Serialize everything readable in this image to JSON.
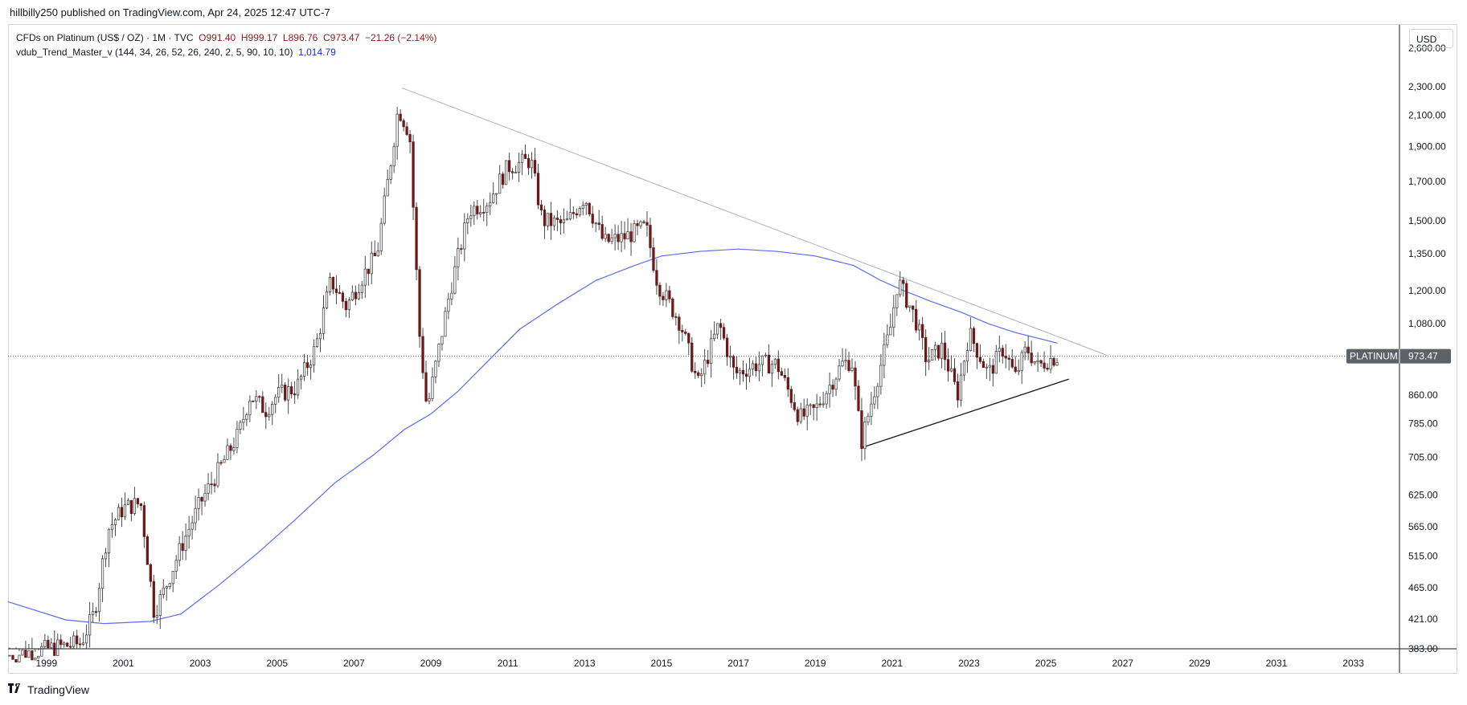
{
  "publisher_line": "hillbilly250 published on TradingView.com, Apr 24, 2025 12:47 UTC-7",
  "legend": {
    "symbol": "CFDs on Platinum (US$ / OZ) · 1M · TVC",
    "open": "O991.40",
    "high": "H999.17",
    "low": "L896.76",
    "close": "C973.47",
    "change": "−21.26 (−2.14%)",
    "indicator": "vdub_Trend_Master_v (144, 34, 26, 52, 26, 240, 2, 5, 90, 10, 10)",
    "indicator_value": "1,014.79"
  },
  "currency_button": "USD",
  "price_tag": {
    "label": "PLATINUM",
    "value": "973.47"
  },
  "footer_logo": "TradingView",
  "colors": {
    "up": "#ffffff",
    "down": "#6b1a1a",
    "wick": "#4a4a4a",
    "ma": "#5b6cf0",
    "trend": "#b3b3b3"
  },
  "chart_data": {
    "type": "candlestick",
    "title": "CFDs on Platinum (US$ / OZ)",
    "interval": "1M",
    "yscale": "log",
    "ylim": [
      383,
      2800
    ],
    "xlim": [
      1998.0,
      2034.2
    ],
    "y_ticks": [
      "2,600.00",
      "2,300.00",
      "2,100.00",
      "1,900.00",
      "1,700.00",
      "1,500.00",
      "1,350.00",
      "1,200.00",
      "1,080.00",
      "973.47",
      "860.00",
      "785.00",
      "705.00",
      "625.00",
      "565.00",
      "515.00",
      "465.00",
      "421.00",
      "383.00"
    ],
    "y_tick_values": [
      2600,
      2300,
      2100,
      1900,
      1700,
      1500,
      1350,
      1200,
      1080,
      973.47,
      860,
      785,
      705,
      625,
      565,
      515,
      465,
      421,
      383
    ],
    "x_ticks": [
      "1999",
      "2001",
      "2003",
      "2005",
      "2007",
      "2009",
      "2011",
      "2013",
      "2015",
      "2017",
      "2019",
      "2021",
      "2023",
      "2025",
      "2027",
      "2029",
      "2031",
      "2033"
    ],
    "x_tick_values": [
      1999,
      2001,
      2003,
      2005,
      2007,
      2009,
      2011,
      2013,
      2015,
      2017,
      2019,
      2021,
      2023,
      2025,
      2027,
      2029,
      2031,
      2033
    ],
    "last_price": 973.47,
    "price_anchors": [
      [
        1998.0,
        375
      ],
      [
        1999.9,
        390
      ],
      [
        2000.25,
        430
      ],
      [
        2000.6,
        560
      ],
      [
        2001.0,
        600
      ],
      [
        2001.45,
        610
      ],
      [
        2001.8,
        430
      ],
      [
        2002.05,
        460
      ],
      [
        2002.5,
        530
      ],
      [
        2003.0,
        610
      ],
      [
        2003.5,
        680
      ],
      [
        2004.0,
        760
      ],
      [
        2004.3,
        860
      ],
      [
        2004.7,
        820
      ],
      [
        2005.0,
        860
      ],
      [
        2005.5,
        880
      ],
      [
        2006.0,
        1000
      ],
      [
        2006.4,
        1240
      ],
      [
        2006.8,
        1140
      ],
      [
        2007.2,
        1250
      ],
      [
        2007.6,
        1350
      ],
      [
        2007.95,
        1800
      ],
      [
        2008.15,
        2150
      ],
      [
        2008.45,
        1980
      ],
      [
        2008.7,
        1050
      ],
      [
        2008.9,
        820
      ],
      [
        2009.1,
        930
      ],
      [
        2009.5,
        1200
      ],
      [
        2010.0,
        1550
      ],
      [
        2010.5,
        1600
      ],
      [
        2011.0,
        1780
      ],
      [
        2011.6,
        1820
      ],
      [
        2011.9,
        1500
      ],
      [
        2012.5,
        1480
      ],
      [
        2013.0,
        1620
      ],
      [
        2013.5,
        1400
      ],
      [
        2014.0,
        1420
      ],
      [
        2014.6,
        1470
      ],
      [
        2014.9,
        1230
      ],
      [
        2015.5,
        1080
      ],
      [
        2015.95,
        890
      ],
      [
        2016.5,
        1080
      ],
      [
        2016.9,
        920
      ],
      [
        2017.5,
        950
      ],
      [
        2018.0,
        950
      ],
      [
        2018.6,
        800
      ],
      [
        2019.0,
        820
      ],
      [
        2019.7,
        950
      ],
      [
        2019.95,
        960
      ],
      [
        2020.2,
        740
      ],
      [
        2020.6,
        900
      ],
      [
        2020.95,
        1060
      ],
      [
        2021.15,
        1240
      ],
      [
        2021.6,
        1100
      ],
      [
        2021.9,
        960
      ],
      [
        2022.3,
        1000
      ],
      [
        2022.7,
        860
      ],
      [
        2023.0,
        1050
      ],
      [
        2023.5,
        920
      ],
      [
        2023.9,
        1000
      ],
      [
        2024.2,
        910
      ],
      [
        2024.5,
        1000
      ],
      [
        2024.8,
        940
      ],
      [
        2025.0,
        960
      ],
      [
        2025.32,
        973.47
      ]
    ],
    "ma_series": [
      [
        1998.0,
        445
      ],
      [
        1999.5,
        420
      ],
      [
        2000.5,
        415
      ],
      [
        2001.7,
        418
      ],
      [
        2002.5,
        428
      ],
      [
        2003.5,
        470
      ],
      [
        2004.5,
        520
      ],
      [
        2005.5,
        580
      ],
      [
        2006.5,
        650
      ],
      [
        2007.5,
        710
      ],
      [
        2008.3,
        770
      ],
      [
        2009.0,
        810
      ],
      [
        2009.7,
        870
      ],
      [
        2010.5,
        960
      ],
      [
        2011.3,
        1060
      ],
      [
        2012.3,
        1150
      ],
      [
        2013.3,
        1240
      ],
      [
        2014.3,
        1300
      ],
      [
        2015.0,
        1340
      ],
      [
        2016.0,
        1360
      ],
      [
        2017.0,
        1370
      ],
      [
        2018.0,
        1360
      ],
      [
        2019.0,
        1340
      ],
      [
        2020.0,
        1300
      ],
      [
        2020.7,
        1240
      ],
      [
        2021.3,
        1200
      ],
      [
        2022.0,
        1160
      ],
      [
        2022.8,
        1120
      ],
      [
        2023.5,
        1080
      ],
      [
        2024.2,
        1050
      ],
      [
        2025.3,
        1015
      ]
    ],
    "trendlines": [
      {
        "name": "upper",
        "from": [
          2008.25,
          2290
        ],
        "to": [
          2026.6,
          976
        ]
      },
      {
        "name": "lower",
        "from": [
          2020.2,
          727
        ],
        "to": [
          2025.6,
          905
        ]
      }
    ]
  }
}
